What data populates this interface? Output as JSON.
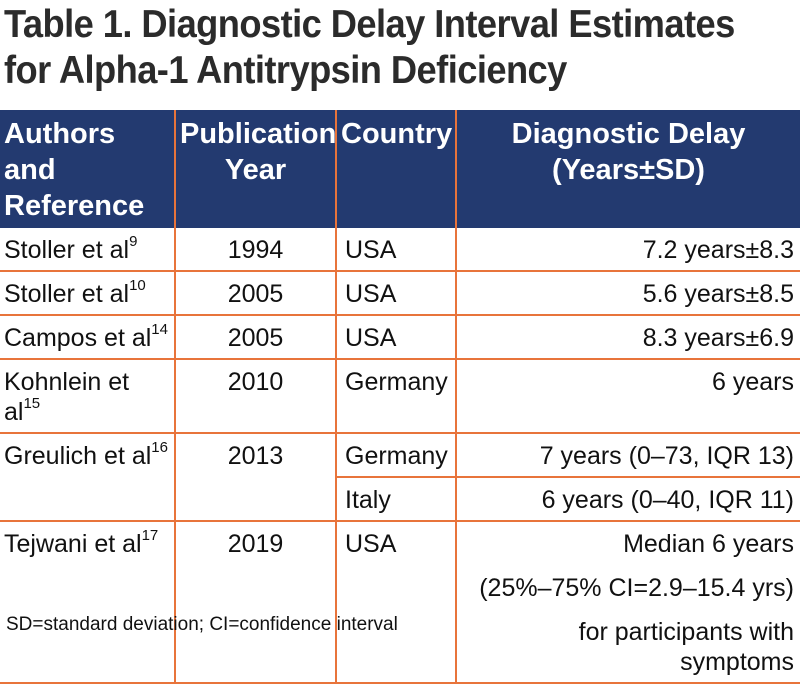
{
  "title_line1": "Table 1. Diagnostic Delay Interval Estimates",
  "title_line2": "for Alpha-1 Antitrypsin Deficiency",
  "headers": {
    "authors_line1": "Authors and",
    "authors_line2": "Reference",
    "year_line1": "Publication",
    "year_line2": "Year",
    "country": "Country",
    "delay_line1": "Diagnostic Delay",
    "delay_line2": "(Years±SD)"
  },
  "rows": [
    {
      "author": "Stoller et al",
      "ref": "9",
      "year": "1994",
      "country": "USA",
      "delay": "7.2 years±8.3"
    },
    {
      "author": "Stoller et al",
      "ref": "10",
      "year": "2005",
      "country": "USA",
      "delay": "5.6 years±8.5"
    },
    {
      "author": "Campos et al",
      "ref": "14",
      "year": "2005",
      "country": "USA",
      "delay": "8.3 years±6.9"
    },
    {
      "author": "Kohnlein et al",
      "ref": "15",
      "year": "2010",
      "country": "Germany",
      "delay": "6 years"
    },
    {
      "author": "Greulich et al",
      "ref": "16",
      "year": "2013",
      "country": "Germany",
      "delay": "7 years (0–73, IQR 13)",
      "country2": "Italy",
      "delay2": "6 years (0–40, IQR 11)"
    },
    {
      "author": "Tejwani et al",
      "ref": "17",
      "year": "2019",
      "country": "USA",
      "delay_lines": [
        "Median 6 years",
        "(25%–75% CI=2.9–15.4 yrs)",
        "for participants with symptoms"
      ]
    }
  ],
  "footnote": "SD=standard deviation; CI=confidence interval",
  "colors": {
    "header_bg": "#233a70",
    "rule": "#e8743b",
    "title": "#2b2b2b"
  }
}
